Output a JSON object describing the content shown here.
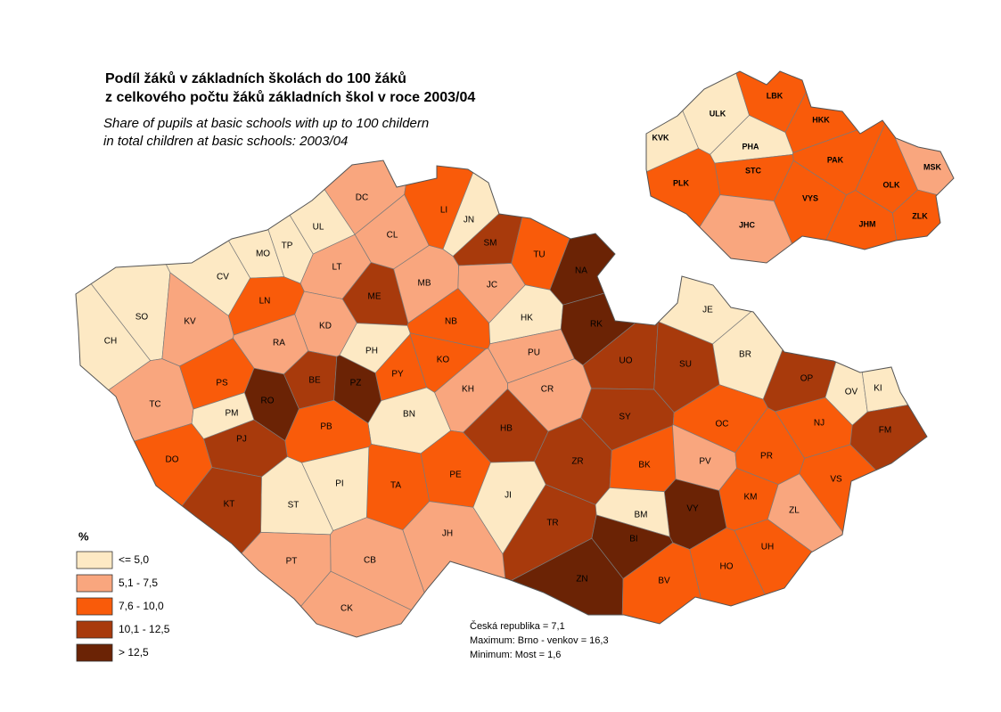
{
  "header": {
    "title_lines": [
      "Podíl žáků v základních školách do 100 žáků",
      "z celkového počtu žáků základních škol  v roce 2003/04"
    ],
    "subtitle_lines": [
      "Share of pupils at basic schools with up to 100 childern",
      "in total children at basic schools: 2003/04"
    ]
  },
  "legend": {
    "title": "%",
    "items": [
      {
        "label": "<=  5,0",
        "color": "#fde9c4"
      },
      {
        "label": "5,1 - 7,5",
        "color": "#f9a67e"
      },
      {
        "label": "7,6 - 10,0",
        "color": "#f95b0a"
      },
      {
        "label": "10,1 - 12,5",
        "color": "#a83a0c"
      },
      {
        "label": "> 12,5",
        "color": "#6b2305"
      }
    ]
  },
  "notes": [
    "Česká republika =  7,1",
    "Maximum: Brno - venkov = 16,3",
    "Minimum: Most  = 1,6"
  ],
  "districts": [
    {
      "code": "DC",
      "class": 1
    },
    {
      "code": "UL",
      "class": 0
    },
    {
      "code": "TP",
      "class": 0
    },
    {
      "code": "MO",
      "class": 0
    },
    {
      "code": "CL",
      "class": 1
    },
    {
      "code": "LI",
      "class": 2
    },
    {
      "code": "JN",
      "class": 0
    },
    {
      "code": "SM",
      "class": 3
    },
    {
      "code": "TU",
      "class": 2
    },
    {
      "code": "NA",
      "class": 4
    },
    {
      "code": "CV",
      "class": 0
    },
    {
      "code": "LT",
      "class": 1
    },
    {
      "code": "ME",
      "class": 3
    },
    {
      "code": "MB",
      "class": 1
    },
    {
      "code": "JC",
      "class": 1
    },
    {
      "code": "SO",
      "class": 0
    },
    {
      "code": "KV",
      "class": 1
    },
    {
      "code": "LN",
      "class": 2
    },
    {
      "code": "KD",
      "class": 1
    },
    {
      "code": "NB",
      "class": 2
    },
    {
      "code": "HK",
      "class": 0
    },
    {
      "code": "RK",
      "class": 4
    },
    {
      "code": "CH",
      "class": 0
    },
    {
      "code": "RA",
      "class": 1
    },
    {
      "code": "PH",
      "class": 0
    },
    {
      "code": "PY",
      "class": 2
    },
    {
      "code": "KO",
      "class": 2
    },
    {
      "code": "PU",
      "class": 1
    },
    {
      "code": "UO",
      "class": 3
    },
    {
      "code": "SU",
      "class": 3
    },
    {
      "code": "JE",
      "class": 0
    },
    {
      "code": "BR",
      "class": 0
    },
    {
      "code": "OP",
      "class": 3
    },
    {
      "code": "OV",
      "class": 0
    },
    {
      "code": "KI",
      "class": 0
    },
    {
      "code": "TC",
      "class": 1
    },
    {
      "code": "PS",
      "class": 2
    },
    {
      "code": "BE",
      "class": 3
    },
    {
      "code": "PZ",
      "class": 4
    },
    {
      "code": "RO",
      "class": 4
    },
    {
      "code": "KH",
      "class": 1
    },
    {
      "code": "CR",
      "class": 1
    },
    {
      "code": "SY",
      "class": 3
    },
    {
      "code": "BN",
      "class": 0
    },
    {
      "code": "PM",
      "class": 0
    },
    {
      "code": "PB",
      "class": 2
    },
    {
      "code": "HB",
      "class": 3
    },
    {
      "code": "OC",
      "class": 2
    },
    {
      "code": "NJ",
      "class": 2
    },
    {
      "code": "FM",
      "class": 3
    },
    {
      "code": "PJ",
      "class": 3
    },
    {
      "code": "DO",
      "class": 2
    },
    {
      "code": "ZR",
      "class": 3
    },
    {
      "code": "BK",
      "class": 2
    },
    {
      "code": "PV",
      "class": 1
    },
    {
      "code": "PR",
      "class": 2
    },
    {
      "code": "VS",
      "class": 2
    },
    {
      "code": "TA",
      "class": 2
    },
    {
      "code": "PE",
      "class": 2
    },
    {
      "code": "PI",
      "class": 0
    },
    {
      "code": "JI",
      "class": 0
    },
    {
      "code": "ST",
      "class": 0
    },
    {
      "code": "KT",
      "class": 3
    },
    {
      "code": "KM",
      "class": 2
    },
    {
      "code": "VY",
      "class": 4
    },
    {
      "code": "BM",
      "class": 0
    },
    {
      "code": "TR",
      "class": 3
    },
    {
      "code": "ZL",
      "class": 1
    },
    {
      "code": "BI",
      "class": 4
    },
    {
      "code": "UH",
      "class": 2
    },
    {
      "code": "JH",
      "class": 1
    },
    {
      "code": "PT",
      "class": 1
    },
    {
      "code": "CB",
      "class": 1
    },
    {
      "code": "HO",
      "class": 2
    },
    {
      "code": "ZN",
      "class": 4
    },
    {
      "code": "BV",
      "class": 2
    },
    {
      "code": "CK",
      "class": 1
    }
  ],
  "regions": [
    {
      "code": "ULK",
      "class": 0
    },
    {
      "code": "LBK",
      "class": 2
    },
    {
      "code": "HKK",
      "class": 2
    },
    {
      "code": "KVK",
      "class": 0
    },
    {
      "code": "PHA",
      "class": 0
    },
    {
      "code": "PAK",
      "class": 2
    },
    {
      "code": "MSK",
      "class": 1
    },
    {
      "code": "STC",
      "class": 2
    },
    {
      "code": "PLK",
      "class": 2
    },
    {
      "code": "OLK",
      "class": 2
    },
    {
      "code": "VYS",
      "class": 2
    },
    {
      "code": "ZLK",
      "class": 2
    },
    {
      "code": "JHC",
      "class": 1
    },
    {
      "code": "JHM",
      "class": 2
    }
  ]
}
